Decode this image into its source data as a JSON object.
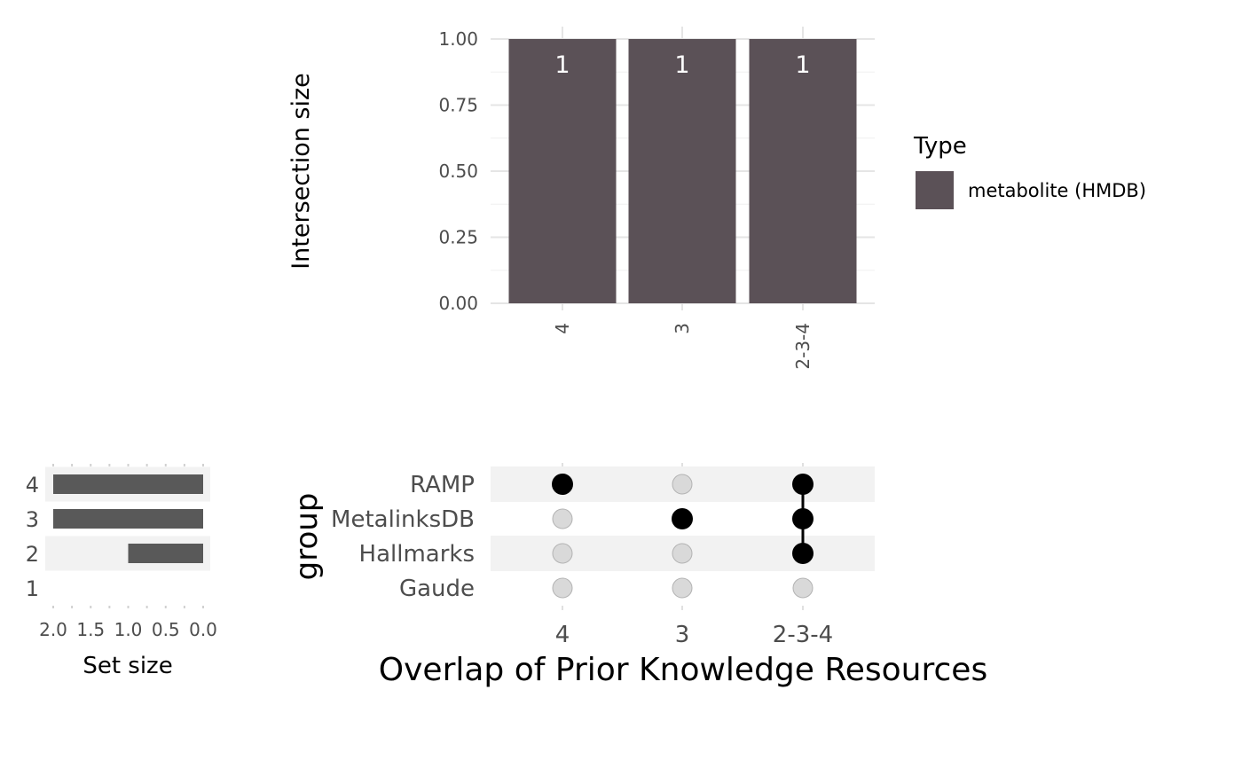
{
  "chart_data": [
    {
      "type": "bar",
      "panel": "intersection-size",
      "ylabel": "Intersection size",
      "ylim": [
        0,
        1
      ],
      "y_ticks": [
        "0.00",
        "0.25",
        "0.50",
        "0.75",
        "1.00"
      ],
      "categories": [
        "4",
        "3",
        "2-3-4"
      ],
      "values": [
        1,
        1,
        1
      ],
      "data_labels": [
        "1",
        "1",
        "1"
      ],
      "legend": {
        "title": "Type",
        "position": "right",
        "entries": [
          "metabolite (HMDB)"
        ]
      },
      "colors": {
        "bar": "#5b5157",
        "label": "#ffffff"
      },
      "grid": true
    },
    {
      "type": "bar",
      "panel": "set-size",
      "orientation": "horizontal",
      "reversed_x": true,
      "xlabel": "Set size",
      "xlim": [
        0,
        2
      ],
      "x_ticks": [
        "2.0",
        "1.5",
        "1.0",
        "0.5",
        "0.0"
      ],
      "categories": [
        "4",
        "3",
        "2",
        "1"
      ],
      "values": [
        2,
        2,
        1,
        0
      ],
      "colors": {
        "bar": "#595959",
        "stripe": "#f2f2f2"
      }
    },
    {
      "type": "matrix",
      "panel": "intersection-matrix",
      "ylabel": "group",
      "xlabel": "Overlap of Prior Knowledge Resources",
      "rows": [
        "RAMP",
        "MetalinksDB",
        "Hallmarks",
        "Gaude"
      ],
      "columns": [
        "4",
        "3",
        "2-3-4"
      ],
      "membership": [
        [
          1,
          0,
          1
        ],
        [
          0,
          1,
          1
        ],
        [
          0,
          0,
          1
        ],
        [
          0,
          0,
          0
        ]
      ],
      "colors": {
        "active": "#000000",
        "inactive": "#d9d9d9",
        "inactive_stroke": "#b3b3b3",
        "stripe": "#f2f2f2"
      }
    }
  ]
}
